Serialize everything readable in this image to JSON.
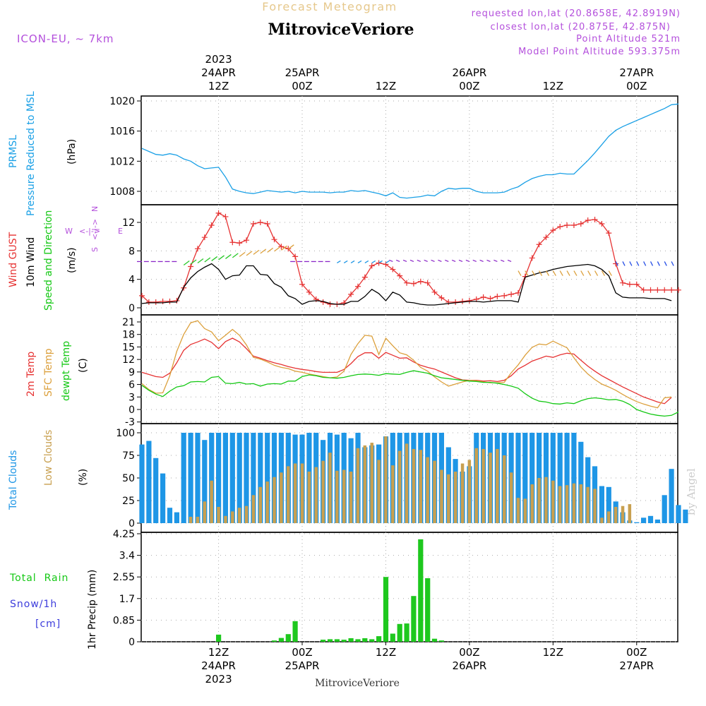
{
  "header": {
    "top_title": "Forecast Meteogram",
    "location": "MitroviceVeriore",
    "model": "ICON-EU, ~ 7km",
    "requested": "requested lon,lat (20.8658E, 42.8919N)",
    "closest": "closest lon,lat (20.875E, 42.875N)",
    "point_alt": "Point Altitude 521m",
    "model_alt": "Model Point Altitude 593.375m",
    "footer_location": "MitroviceVeriore",
    "watermark": "by Angel"
  },
  "time_axis": {
    "top": [
      {
        "hour_index": 12,
        "lines": [
          "2023",
          "24APR",
          "12Z"
        ]
      },
      {
        "hour_index": 24,
        "lines": [
          "25APR",
          "00Z"
        ]
      },
      {
        "hour_index": 36,
        "lines": [
          "12Z"
        ]
      },
      {
        "hour_index": 48,
        "lines": [
          "26APR",
          "00Z"
        ]
      },
      {
        "hour_index": 60,
        "lines": [
          "12Z"
        ]
      },
      {
        "hour_index": 72,
        "lines": [
          "27APR",
          "00Z"
        ]
      }
    ],
    "bottom": [
      {
        "hour_index": 12,
        "lines": [
          "12Z",
          "24APR",
          "2023"
        ]
      },
      {
        "hour_index": 24,
        "lines": [
          "00Z",
          "25APR"
        ]
      },
      {
        "hour_index": 36,
        "lines": [
          "12Z"
        ]
      },
      {
        "hour_index": 48,
        "lines": [
          "00Z",
          "26APR"
        ]
      },
      {
        "hour_index": 60,
        "lines": [
          "12Z"
        ]
      },
      {
        "hour_index": 72,
        "lines": [
          "00Z",
          "27APR"
        ]
      }
    ]
  },
  "panel_labels": {
    "pressure": {
      "line1": "PRMSL",
      "line2": "Pressure Reduced to MSL",
      "unit": "(hPa)"
    },
    "wind": {
      "gust": "Wind GUST",
      "wind10": "10m Wind",
      "speed_dir": "Speed and Direction",
      "unit": "(m/s)",
      "compass_n": "N",
      "compass_s": "S",
      "compass_w": "W",
      "compass_e": "E"
    },
    "temp": {
      "t2m": "2m Temp",
      "sfc": "SFC Temp",
      "dewpt": "dewpt Temp",
      "unit": "(C)"
    },
    "clouds": {
      "total": "Total Clouds",
      "low": "Low Clouds",
      "unit": "(%)"
    },
    "precip": {
      "rain": "Total  Rain",
      "snow": "Snow/1h",
      "snow_unit": "[cm]",
      "axis": "1hr Precip (mm)"
    }
  },
  "colors": {
    "pressure": "#1aa0e6",
    "gust": "#e63232",
    "wind": "#000000",
    "t2m": "#e63232",
    "sfc": "#dca03c",
    "dewpt": "#14c814",
    "total_clouds": "#1e96e6",
    "low_clouds": "#c8a050",
    "rain": "#1ec81e",
    "label_purple": "#b450dc",
    "title_orange": "#e6c88c",
    "snow_blue": "#3c3cdc"
  },
  "chart_data": [
    {
      "type": "line",
      "name": "pressure",
      "x_range": [
        1,
        77
      ],
      "ylim": [
        1006,
        1021
      ],
      "yticks": [
        "1008",
        "1012",
        "1016",
        "1020"
      ],
      "ytick_values": [
        1008,
        1012,
        1016,
        1020
      ],
      "series": [
        {
          "key": "pressure",
          "values": [
            1013.7,
            1013.3,
            1012.9,
            1012.8,
            1013.0,
            1012.8,
            1012.3,
            1012.0,
            1011.4,
            1011.0,
            1011.1,
            1011.2,
            1009.9,
            1008.3,
            1008.0,
            1007.8,
            1007.7,
            1007.9,
            1008.1,
            1008.0,
            1007.9,
            1008.0,
            1007.8,
            1008.0,
            1007.9,
            1007.9,
            1007.9,
            1007.8,
            1007.9,
            1007.9,
            1008.1,
            1008.0,
            1008.1,
            1007.9,
            1007.7,
            1007.4,
            1007.8,
            1007.2,
            1007.1,
            1007.2,
            1007.3,
            1007.5,
            1007.4,
            1008.0,
            1008.4,
            1008.3,
            1008.4,
            1008.4,
            1008.0,
            1007.8,
            1007.8,
            1007.8,
            1007.9,
            1008.3,
            1008.6,
            1009.2,
            1009.7,
            1010.0,
            1010.2,
            1010.2,
            1010.4,
            1010.3,
            1010.3,
            1011.2,
            1012.1,
            1013.1,
            1014.2,
            1015.3,
            1016.1,
            1016.6,
            1017.0,
            1017.4,
            1017.8,
            1018.2,
            1018.6,
            1019.0,
            1019.5,
            1019.6
          ]
        }
      ]
    },
    {
      "type": "line",
      "name": "wind",
      "x_range": [
        1,
        77
      ],
      "ylim": [
        -0.5,
        14
      ],
      "yticks": [
        "0",
        "4",
        "8",
        "12"
      ],
      "ytick_values": [
        0,
        4,
        8,
        12
      ],
      "series": [
        {
          "key": "gust",
          "values": [
            1.7,
            0.8,
            0.8,
            0.9,
            0.9,
            1.0,
            2.8,
            5.8,
            8.3,
            9.9,
            11.6,
            13.3,
            12.8,
            9.2,
            9.1,
            9.5,
            11.8,
            12.0,
            11.8,
            9.6,
            8.6,
            8.3,
            7.2,
            3.3,
            2.2,
            1.2,
            0.8,
            0.5,
            0.5,
            0.7,
            1.9,
            3.0,
            4.3,
            5.9,
            6.3,
            6.1,
            5.4,
            4.5,
            3.5,
            3.4,
            3.7,
            3.5,
            2.2,
            1.4,
            0.8,
            0.8,
            0.9,
            1.0,
            1.2,
            1.5,
            1.3,
            1.6,
            1.7,
            1.9,
            2.1,
            4.4,
            7.0,
            8.9,
            9.9,
            10.9,
            11.4,
            11.6,
            11.6,
            11.8,
            12.3,
            12.4,
            11.8,
            10.5,
            6.2,
            3.5,
            3.3,
            3.3,
            2.5,
            2.5,
            2.5,
            2.5,
            2.5,
            2.5
          ]
        },
        {
          "key": "wind10",
          "values": [
            0.6,
            0.7,
            0.7,
            0.7,
            0.8,
            0.8,
            2.9,
            4.2,
            5.1,
            5.7,
            6.2,
            5.4,
            4.0,
            4.5,
            4.6,
            5.9,
            5.9,
            4.7,
            4.6,
            3.4,
            2.9,
            1.7,
            1.3,
            0.5,
            0.9,
            1.0,
            0.9,
            0.6,
            0.5,
            0.5,
            0.9,
            0.9,
            1.6,
            2.6,
            2.0,
            1.0,
            2.2,
            1.8,
            0.8,
            0.7,
            0.5,
            0.4,
            0.4,
            0.5,
            0.6,
            0.7,
            0.8,
            0.9,
            0.9,
            0.8,
            0.9,
            1.0,
            1.0,
            1.0,
            0.8,
            4.3,
            4.6,
            4.9,
            5.1,
            5.4,
            5.6,
            5.8,
            5.9,
            6.0,
            6.1,
            5.9,
            5.4,
            4.5,
            2.1,
            1.5,
            1.4,
            1.4,
            1.4,
            1.3,
            1.3,
            1.3,
            1.0
          ]
        }
      ]
    },
    {
      "type": "line",
      "name": "temperature",
      "x_range": [
        1,
        77
      ],
      "ylim": [
        -3,
        22
      ],
      "yticks": [
        "-3",
        "0",
        "3",
        "6",
        "9",
        "12",
        "15",
        "18",
        "21"
      ],
      "ytick_values": [
        -3,
        0,
        3,
        6,
        9,
        12,
        15,
        18,
        21
      ],
      "series": [
        {
          "key": "t2m",
          "values": [
            8.9,
            8.4,
            7.9,
            7.7,
            8.7,
            11.2,
            14.2,
            15.6,
            16.2,
            16.9,
            16.1,
            14.6,
            16.3,
            17.1,
            16.2,
            14.6,
            12.8,
            12.3,
            11.7,
            11.2,
            10.8,
            10.3,
            9.9,
            9.6,
            9.4,
            9.1,
            8.9,
            8.9,
            8.9,
            9.6,
            11.0,
            12.7,
            13.6,
            13.6,
            12.3,
            13.7,
            13.0,
            12.3,
            12.4,
            11.4,
            10.6,
            10.1,
            9.7,
            9.0,
            8.3,
            7.6,
            7.1,
            7.0,
            7.0,
            6.8,
            6.9,
            6.7,
            7.0,
            8.1,
            9.7,
            10.6,
            11.6,
            12.2,
            12.8,
            12.5,
            13.1,
            13.5,
            13.3,
            11.8,
            10.4,
            9.2,
            8.1,
            7.2,
            6.3,
            5.4,
            4.6,
            3.8,
            3.0,
            2.4,
            1.8,
            1.4,
            2.9
          ]
        },
        {
          "key": "sfc",
          "values": [
            6.2,
            4.8,
            3.9,
            4.0,
            8.1,
            13.9,
            18.0,
            20.8,
            21.3,
            19.4,
            18.6,
            16.5,
            17.8,
            19.2,
            17.8,
            15.5,
            12.5,
            12.1,
            11.4,
            10.6,
            10.1,
            9.8,
            9.2,
            8.9,
            8.5,
            8.2,
            7.9,
            7.6,
            7.8,
            9.2,
            13.2,
            15.8,
            17.8,
            17.6,
            13.2,
            17.1,
            15.3,
            13.6,
            13.1,
            11.8,
            10.1,
            9.2,
            7.8,
            6.6,
            5.6,
            6.1,
            6.6,
            7.0,
            6.9,
            6.6,
            6.4,
            6.4,
            6.5,
            8.8,
            10.7,
            13.0,
            14.9,
            15.7,
            15.5,
            16.4,
            15.6,
            14.8,
            12.4,
            10.2,
            8.5,
            7.2,
            6.1,
            5.4,
            4.6,
            3.6,
            2.7,
            1.9,
            1.3,
            0.8,
            0.4,
            2.8,
            3.0
          ]
        },
        {
          "key": "dewpt",
          "values": [
            5.8,
            4.6,
            3.7,
            3.1,
            4.4,
            5.4,
            5.7,
            6.6,
            6.7,
            6.6,
            7.7,
            7.9,
            6.3,
            6.2,
            6.5,
            6.1,
            6.2,
            5.6,
            6.1,
            6.2,
            6.1,
            6.8,
            6.8,
            7.9,
            8.3,
            8.1,
            7.7,
            7.6,
            7.5,
            7.7,
            8.1,
            8.4,
            8.5,
            8.4,
            8.2,
            8.6,
            8.5,
            8.4,
            8.9,
            9.3,
            9.0,
            8.7,
            8.1,
            7.6,
            7.4,
            7.2,
            7.0,
            6.8,
            6.7,
            6.5,
            6.5,
            6.3,
            6.0,
            5.6,
            5.1,
            3.8,
            2.7,
            2.0,
            1.8,
            1.4,
            1.3,
            1.6,
            1.4,
            2.1,
            2.6,
            2.8,
            2.6,
            2.3,
            2.4,
            2.0,
            1.2,
            0.0,
            -0.6,
            -1.1,
            -1.4,
            -1.6,
            -1.4,
            -0.6
          ]
        }
      ]
    },
    {
      "type": "bar",
      "name": "clouds",
      "x_range": [
        1,
        77
      ],
      "ylim": [
        0,
        100
      ],
      "yticks": [
        "0",
        "25",
        "50",
        "75",
        "100"
      ],
      "ytick_values": [
        0,
        25,
        50,
        75,
        100
      ],
      "series": [
        {
          "key": "total_clouds",
          "values": [
            87,
            91,
            72,
            55,
            17,
            12,
            100,
            100,
            100,
            92,
            100,
            100,
            100,
            100,
            100,
            100,
            100,
            100,
            100,
            100,
            100,
            100,
            98,
            98,
            100,
            100,
            92,
            100,
            98,
            100,
            94,
            100,
            84,
            86,
            87,
            96,
            100,
            100,
            100,
            100,
            100,
            100,
            100,
            100,
            84,
            71,
            57,
            63,
            100,
            100,
            100,
            100,
            100,
            100,
            100,
            100,
            100,
            100,
            100,
            100,
            100,
            100,
            100,
            90,
            73,
            63,
            41,
            40,
            24,
            12,
            3,
            1,
            6,
            8,
            4,
            31,
            60,
            20,
            15
          ]
        },
        {
          "key": "low_clouds",
          "values": [
            0,
            0,
            0,
            0,
            0,
            0,
            0,
            7,
            7,
            24,
            47,
            18,
            8,
            13,
            17,
            19,
            31,
            40,
            46,
            51,
            56,
            63,
            66,
            66,
            57,
            62,
            69,
            78,
            58,
            59,
            57,
            83,
            86,
            89,
            70,
            96,
            64,
            80,
            88,
            82,
            81,
            73,
            69,
            59,
            54,
            57,
            66,
            70,
            83,
            82,
            78,
            82,
            75,
            56,
            28,
            27,
            43,
            50,
            51,
            47,
            41,
            42,
            44,
            43,
            40,
            38,
            6,
            13,
            18,
            19,
            21
          ]
        }
      ]
    },
    {
      "type": "bar",
      "name": "precipitation",
      "x_range": [
        1,
        77
      ],
      "ylim": [
        0,
        4.25
      ],
      "yticks": [
        "0",
        "0.85",
        "1.7",
        "2.55",
        "3.4",
        "4.25"
      ],
      "ytick_values": [
        0,
        0.85,
        1.7,
        2.55,
        3.4,
        4.25
      ],
      "series": [
        {
          "key": "rain",
          "values": [
            0,
            0,
            0,
            0,
            0,
            0,
            0,
            0,
            0,
            0,
            0,
            0.28,
            0,
            0,
            0,
            0,
            0,
            0,
            0,
            0.05,
            0.15,
            0.3,
            0.81,
            0,
            0,
            0,
            0.08,
            0.1,
            0.1,
            0.08,
            0.14,
            0.1,
            0.14,
            0.1,
            0.22,
            2.55,
            0.32,
            0.7,
            0.72,
            1.8,
            4.03,
            2.5,
            0.12,
            0.05,
            0,
            0,
            0,
            0,
            0,
            0,
            0,
            0,
            0,
            0,
            0,
            0,
            0,
            0,
            0,
            0,
            0,
            0,
            0,
            0,
            0,
            0,
            0,
            0,
            0,
            0,
            0,
            0,
            0,
            0,
            0,
            0,
            0
          ]
        }
      ]
    }
  ]
}
